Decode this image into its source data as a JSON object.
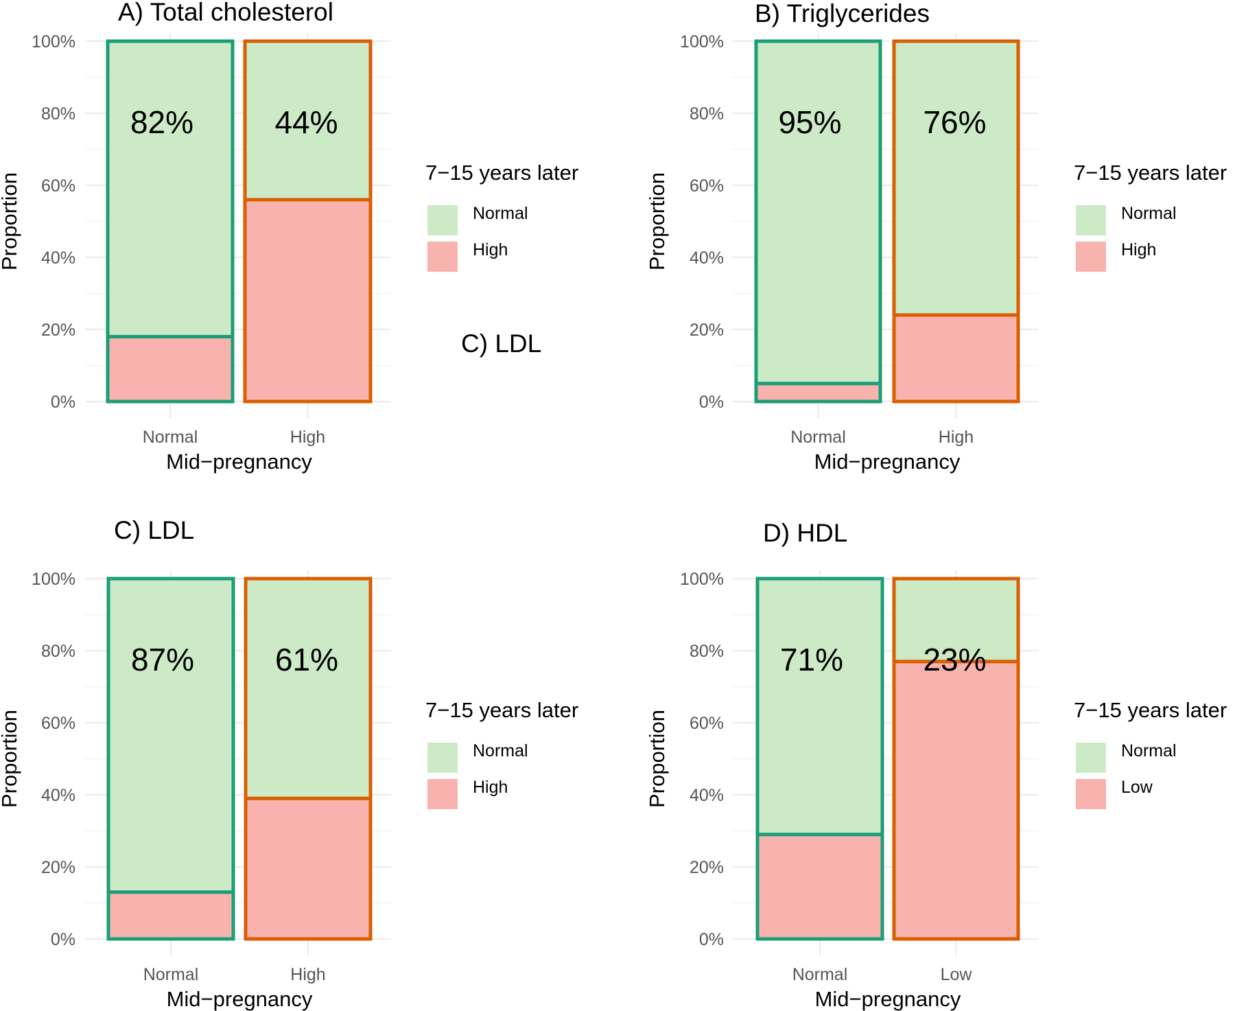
{
  "colors": {
    "normal_fill": "#cdeac7",
    "abnormal_fill": "#f9b3ae",
    "normal_group_outline": "#1b9e77",
    "abnormal_group_outline": "#d95f02"
  },
  "stray_label": "C) LDL",
  "chart_data": [
    {
      "type": "bar",
      "stacked": true,
      "title": "A) Total cholesterol",
      "xlabel": "Mid−pregnancy",
      "ylabel": "Proportion",
      "ylim": [
        0,
        1
      ],
      "yticks": [
        "0%",
        "20%",
        "40%",
        "60%",
        "80%",
        "100%"
      ],
      "categories": [
        "Normal",
        "High"
      ],
      "legend_title": "7−15 years later",
      "legend_position": "right",
      "series": [
        {
          "name": "Normal",
          "values": [
            0.82,
            0.44
          ]
        },
        {
          "name": "High",
          "values": [
            0.18,
            0.56
          ]
        }
      ],
      "bar_labels": [
        "82%",
        "44%"
      ]
    },
    {
      "type": "bar",
      "stacked": true,
      "title": "B) Triglycerides",
      "xlabel": "Mid−pregnancy",
      "ylabel": "Proportion",
      "ylim": [
        0,
        1
      ],
      "yticks": [
        "0%",
        "20%",
        "40%",
        "60%",
        "80%",
        "100%"
      ],
      "categories": [
        "Normal",
        "High"
      ],
      "legend_title": "7−15 years later",
      "legend_position": "right",
      "series": [
        {
          "name": "Normal",
          "values": [
            0.95,
            0.76
          ]
        },
        {
          "name": "High",
          "values": [
            0.05,
            0.24
          ]
        }
      ],
      "bar_labels": [
        "95%",
        "76%"
      ]
    },
    {
      "type": "bar",
      "stacked": true,
      "title": "C) LDL",
      "xlabel": "Mid−pregnancy",
      "ylabel": "Proportion",
      "ylim": [
        0,
        1
      ],
      "yticks": [
        "0%",
        "20%",
        "40%",
        "60%",
        "80%",
        "100%"
      ],
      "categories": [
        "Normal",
        "High"
      ],
      "legend_title": "7−15 years later",
      "legend_position": "right",
      "series": [
        {
          "name": "Normal",
          "values": [
            0.87,
            0.61
          ]
        },
        {
          "name": "High",
          "values": [
            0.13,
            0.39
          ]
        }
      ],
      "bar_labels": [
        "87%",
        "61%"
      ]
    },
    {
      "type": "bar",
      "stacked": true,
      "title": "D) HDL",
      "xlabel": "Mid−pregnancy",
      "ylabel": "Proportion",
      "ylim": [
        0,
        1
      ],
      "yticks": [
        "0%",
        "20%",
        "40%",
        "60%",
        "80%",
        "100%"
      ],
      "categories": [
        "Normal",
        "Low"
      ],
      "legend_title": "7−15 years later",
      "legend_position": "right",
      "series": [
        {
          "name": "Normal",
          "values": [
            0.71,
            0.23
          ]
        },
        {
          "name": "Low",
          "values": [
            0.29,
            0.77
          ]
        }
      ],
      "bar_labels": [
        "71%",
        "23%"
      ]
    }
  ]
}
